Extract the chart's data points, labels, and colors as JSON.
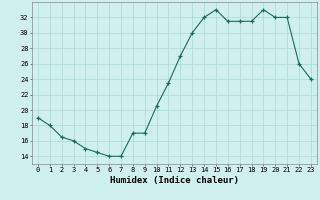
{
  "x": [
    0,
    1,
    2,
    3,
    4,
    5,
    6,
    7,
    8,
    9,
    10,
    11,
    12,
    13,
    14,
    15,
    16,
    17,
    18,
    19,
    20,
    21,
    22,
    23
  ],
  "y": [
    19,
    18,
    16.5,
    16,
    15,
    14.5,
    14,
    14,
    17,
    17,
    20.5,
    23.5,
    27,
    30,
    32,
    33,
    31.5,
    31.5,
    31.5,
    33,
    32,
    32,
    26,
    24
  ],
  "xlabel": "Humidex (Indice chaleur)",
  "ylim": [
    13,
    34
  ],
  "yticks": [
    14,
    16,
    18,
    20,
    22,
    24,
    26,
    28,
    30,
    32
  ],
  "xlim": [
    -0.5,
    23.5
  ],
  "line_color": "#1a6b5a",
  "bg_color": "#cff0ec",
  "grid_color": "#aad8d2",
  "tick_fontsize": 5,
  "label_fontsize": 6.5
}
